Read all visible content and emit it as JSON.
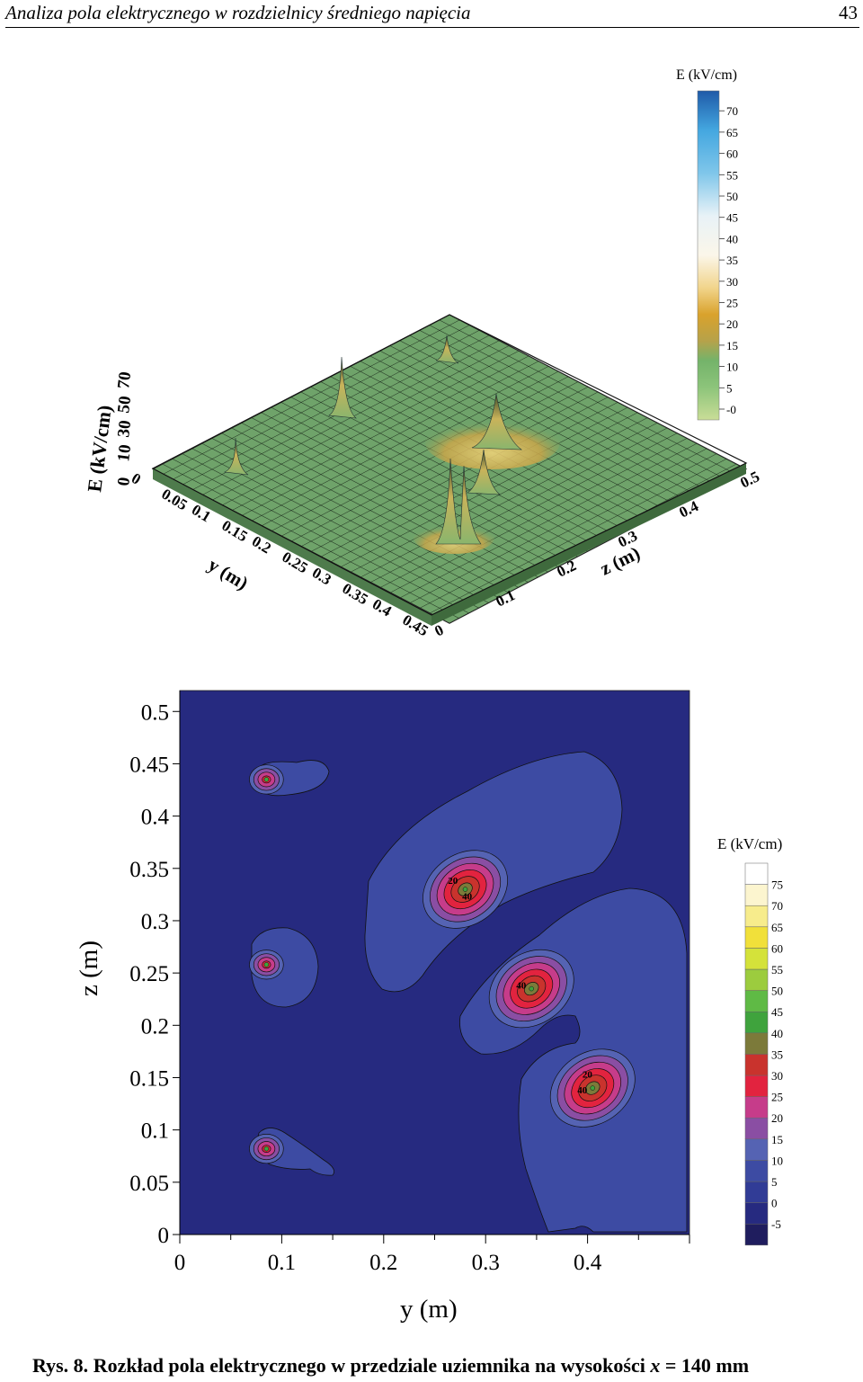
{
  "header": {
    "title": "Analiza pola elektrycznego w rozdzielnicy średniego napięcia",
    "page_number": "43"
  },
  "caption": {
    "label": "Rys. 8.",
    "text": "Rozkład pola elektrycznego w przedziale uziemnika na wysokości",
    "variable": "x",
    "value": "= 140 mm"
  },
  "chart_data": [
    {
      "type": "surface",
      "zlabel": "E (kV/cm)",
      "ylabel": "y (m)",
      "xlabel": "z (m)",
      "z_axis_ticks": [
        "0",
        "10",
        "30",
        "50",
        "70"
      ],
      "y_axis_ticks": [
        "0",
        "0.05",
        "0.1",
        "0.15",
        "0.2",
        "0.25",
        "0.3",
        "0.35",
        "0.4",
        "0.45"
      ],
      "x_axis_ticks": [
        "0",
        "0.1",
        "0.2",
        "0.3",
        "0.4",
        "0.5"
      ],
      "colorbar": {
        "title": "E (kV/cm)",
        "ticks": [
          "-0",
          "5",
          "10",
          "15",
          "20",
          "25",
          "30",
          "35",
          "40",
          "45",
          "50",
          "55",
          "60",
          "65",
          "70"
        ],
        "range": [
          0,
          73
        ],
        "colors": [
          "#c9dd97",
          "#8cc47a",
          "#74b36a",
          "#b6a24a",
          "#d9a22c",
          "#e9b247",
          "#f1d48a",
          "#f7ebc6",
          "#fbf6e9",
          "#e8f2f7",
          "#bfe2f1",
          "#7fc6ea",
          "#44a7e0",
          "#2a7ecd",
          "#1f5aa8"
        ]
      },
      "peaks": [
        {
          "y": 0.09,
          "z": 0.08,
          "E": 30
        },
        {
          "y": 0.09,
          "z": 0.25,
          "E": 55
        },
        {
          "y": 0.09,
          "z": 0.43,
          "E": 28
        },
        {
          "y": 0.28,
          "z": 0.33,
          "E": 45
        },
        {
          "y": 0.34,
          "z": 0.24,
          "E": 38
        },
        {
          "y": 0.4,
          "z": 0.14,
          "E": 60
        }
      ]
    },
    {
      "type": "contour",
      "xlabel": "y (m)",
      "ylabel": "z (m)",
      "xlim": [
        0,
        0.5
      ],
      "ylim": [
        0,
        0.52
      ],
      "x_ticks": [
        "0",
        "0.1",
        "0.2",
        "0.3",
        "0.4"
      ],
      "y_ticks": [
        "0",
        "0.05",
        "0.1",
        "0.15",
        "0.2",
        "0.25",
        "0.3",
        "0.35",
        "0.4",
        "0.45",
        "0.5"
      ],
      "colorbar": {
        "title": "E (kV/cm)",
        "ticks": [
          "-5",
          "0",
          "5",
          "10",
          "15",
          "20",
          "25",
          "30",
          "35",
          "40",
          "45",
          "50",
          "55",
          "60",
          "65",
          "70",
          "75"
        ],
        "colors": [
          "#1f1d5e",
          "#262a80",
          "#313c96",
          "#3d4ba3",
          "#5563b3",
          "#8a4ea3",
          "#c63c8a",
          "#e2233f",
          "#c9332d",
          "#7c7a3a",
          "#3fa33d",
          "#5fba45",
          "#9ccc3e",
          "#d4e23a",
          "#f1e03a",
          "#f7ec8c",
          "#fcf5cf",
          "#ffffff"
        ]
      },
      "contour_labels": [
        {
          "y": 0.263,
          "z": 0.335,
          "text": "20"
        },
        {
          "y": 0.277,
          "z": 0.32,
          "text": "40"
        },
        {
          "y": 0.33,
          "z": 0.235,
          "text": "40"
        },
        {
          "y": 0.395,
          "z": 0.15,
          "text": "20"
        },
        {
          "y": 0.39,
          "z": 0.135,
          "text": "40"
        }
      ],
      "hotspots": [
        {
          "y": 0.085,
          "z": 0.435,
          "peak": 25
        },
        {
          "y": 0.085,
          "z": 0.258,
          "peak": 35
        },
        {
          "y": 0.085,
          "z": 0.082,
          "peak": 30
        },
        {
          "y": 0.28,
          "z": 0.33,
          "peak": 45
        },
        {
          "y": 0.345,
          "z": 0.235,
          "peak": 40
        },
        {
          "y": 0.405,
          "z": 0.14,
          "peak": 50
        }
      ]
    }
  ]
}
